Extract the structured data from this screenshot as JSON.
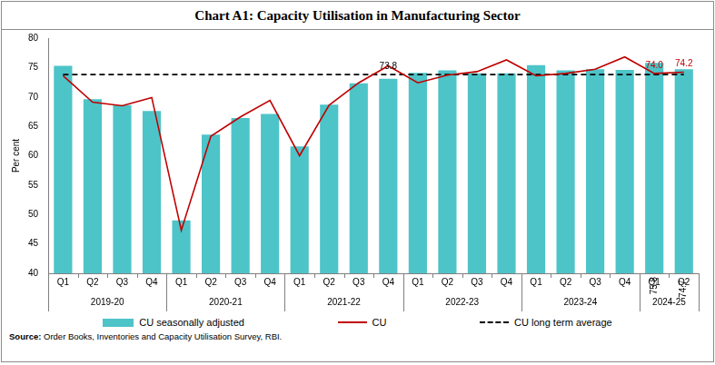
{
  "chart_data": {
    "type": "bar",
    "title": "Chart A1: Capacity Utilisation in Manufacturing Sector",
    "y_label": "Per cent",
    "source_label": "Source:",
    "source": "Order Books, Inventories and Capacity Utilisation Survey, RBI.",
    "categories": [
      "Q1",
      "Q2",
      "Q3",
      "Q4",
      "Q1",
      "Q2",
      "Q3",
      "Q4",
      "Q1",
      "Q2",
      "Q3",
      "Q4",
      "Q1",
      "Q2",
      "Q3",
      "Q4",
      "Q1",
      "Q2",
      "Q3",
      "Q4",
      "Q1",
      "Q2"
    ],
    "category_groups": [
      {
        "label": "2019-20",
        "count": 4
      },
      {
        "label": "2020-21",
        "count": 4
      },
      {
        "label": "2021-22",
        "count": 4
      },
      {
        "label": "2022-23",
        "count": 4
      },
      {
        "label": "2023-24",
        "count": 4
      },
      {
        "label": "2024-25",
        "count": 2
      }
    ],
    "series": [
      {
        "name": "CU seasonally adjusted",
        "type": "bar",
        "color": "#4dc4c8",
        "values": [
          75.3,
          69.6,
          68.6,
          67.6,
          49.0,
          63.6,
          66.4,
          67.1,
          61.6,
          68.7,
          72.3,
          73.1,
          74.1,
          74.5,
          74.0,
          74.0,
          75.4,
          74.5,
          74.7,
          74.6,
          75.8,
          74.7
        ],
        "value_labels": [
          null,
          null,
          null,
          null,
          null,
          null,
          null,
          null,
          null,
          null,
          null,
          null,
          null,
          null,
          null,
          null,
          null,
          null,
          null,
          null,
          "75.8",
          "74.7"
        ]
      },
      {
        "name": "CU",
        "type": "line",
        "color": "#c00000",
        "marker": "none",
        "line_style": "solid",
        "values": [
          73.6,
          69.1,
          68.5,
          69.9,
          47.3,
          63.3,
          66.6,
          69.4,
          60.0,
          68.6,
          72.4,
          75.3,
          72.4,
          73.7,
          74.3,
          76.3,
          73.6,
          74.0,
          74.7,
          76.8,
          74.0,
          74.2
        ],
        "value_labels": [
          null,
          null,
          null,
          null,
          null,
          null,
          null,
          null,
          null,
          null,
          null,
          null,
          null,
          null,
          null,
          null,
          null,
          null,
          null,
          null,
          "74.0",
          "74.2"
        ]
      },
      {
        "name": "CU long term average",
        "type": "line",
        "color": "#000000",
        "marker": "none",
        "line_style": "dashed",
        "values": [
          73.8,
          73.8,
          73.8,
          73.8,
          73.8,
          73.8,
          73.8,
          73.8,
          73.8,
          73.8,
          73.8,
          73.8,
          73.8,
          73.8,
          73.8,
          73.8,
          73.8,
          73.8,
          73.8,
          73.8,
          73.8,
          73.8
        ],
        "value_labels": [
          null,
          null,
          null,
          null,
          null,
          null,
          null,
          null,
          null,
          null,
          null,
          "73.8",
          null,
          null,
          null,
          null,
          null,
          null,
          null,
          null,
          null,
          null
        ]
      }
    ],
    "ylim": [
      40,
      80
    ],
    "yticks": [
      40,
      45,
      50,
      55,
      60,
      65,
      70,
      75,
      80
    ],
    "grid": false,
    "legend": "bottom"
  }
}
